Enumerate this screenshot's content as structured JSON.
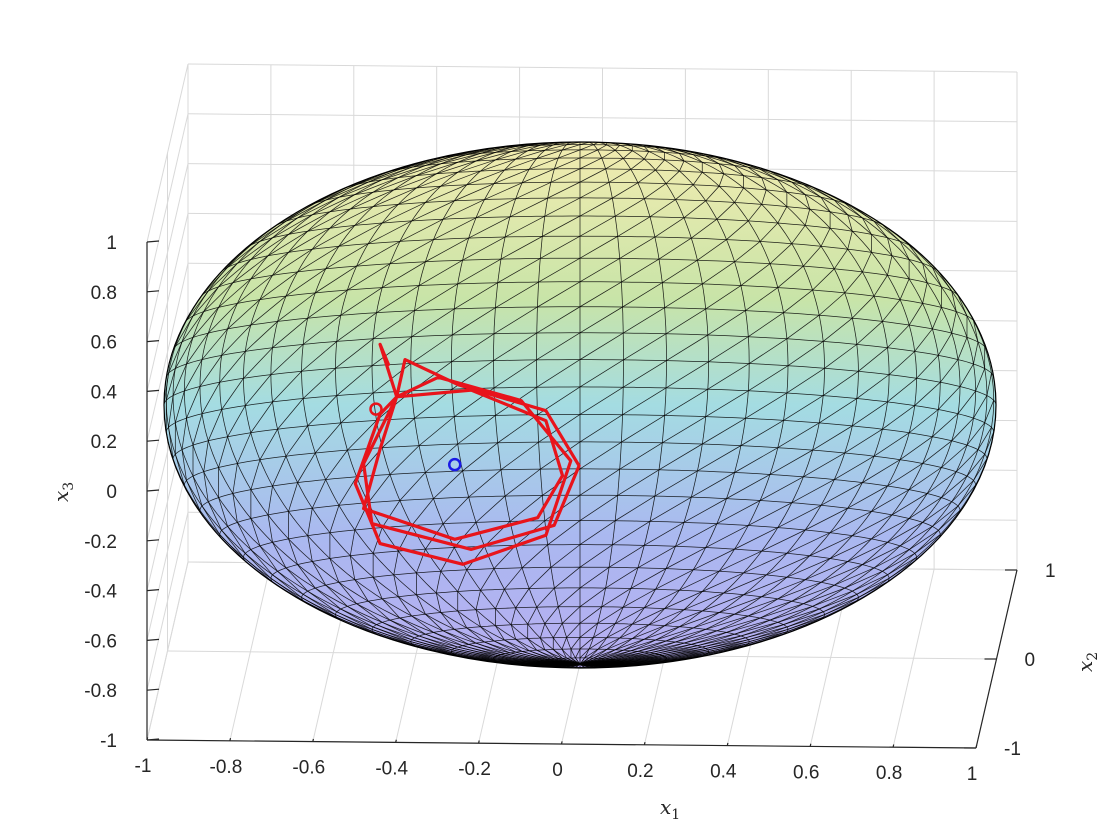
{
  "chart_data": {
    "type": "3d-surface-with-trajectory",
    "surface": {
      "shape": "ellipsoid",
      "radii": [
        1,
        1,
        0.6
      ],
      "colormap": [
        "#2d2df5",
        "#3b8fd9",
        "#4fc2b8",
        "#a7d98e",
        "#f0e89a"
      ],
      "face_alpha": 0.3,
      "edge_color": "#000000"
    },
    "trajectory": {
      "color": "#e8141b",
      "points": [
        [
          -0.42,
          -0.95,
          0.5
        ],
        [
          -0.44,
          -0.95,
          0.58
        ],
        [
          -0.4,
          -0.95,
          0.37
        ],
        [
          -0.3,
          -0.95,
          0.45
        ],
        [
          -0.1,
          -0.95,
          0.36
        ],
        [
          0.02,
          -0.95,
          0.12
        ],
        [
          -0.04,
          -0.95,
          -0.18
        ],
        [
          -0.24,
          -0.95,
          -0.3
        ],
        [
          -0.44,
          -0.95,
          -0.22
        ],
        [
          -0.5,
          -0.95,
          0.02
        ],
        [
          -0.44,
          -0.95,
          0.3
        ],
        [
          -0.4,
          -0.95,
          0.37
        ],
        [
          -0.38,
          -0.95,
          0.52
        ],
        [
          -0.25,
          -0.95,
          0.42
        ],
        [
          -0.04,
          -0.95,
          0.32
        ],
        [
          0.04,
          -0.95,
          0.1
        ],
        [
          -0.02,
          -0.95,
          -0.14
        ],
        [
          -0.22,
          -0.95,
          -0.24
        ],
        [
          -0.46,
          -0.95,
          -0.14
        ],
        [
          -0.48,
          -0.95,
          0.1
        ],
        [
          -0.4,
          -0.95,
          0.37
        ],
        [
          -0.22,
          -0.95,
          0.4
        ],
        [
          -0.04,
          -0.95,
          0.28
        ],
        [
          0.0,
          -0.95,
          0.06
        ],
        [
          -0.06,
          -0.95,
          -0.11
        ],
        [
          -0.26,
          -0.95,
          -0.2
        ],
        [
          -0.48,
          -0.95,
          -0.08
        ],
        [
          -0.44,
          -0.95,
          0.16
        ],
        [
          -0.4,
          -0.95,
          0.37
        ]
      ],
      "start_marker": {
        "point": [
          -0.45,
          -0.95,
          0.32
        ],
        "color": "#e8141b",
        "shape": "circle"
      }
    },
    "equilibrium_marker": {
      "point": [
        -0.26,
        -0.95,
        0.1
      ],
      "color": "#1a1ae6",
      "shape": "circle"
    },
    "x1": {
      "label": "x",
      "subscript": "1",
      "lim": [
        -1,
        1
      ],
      "ticks": [
        "-1",
        "-0.8",
        "-0.6",
        "-0.4",
        "-0.2",
        "0",
        "0.2",
        "0.4",
        "0.6",
        "0.8",
        "1"
      ]
    },
    "x2": {
      "label": "x",
      "subscript": "2",
      "lim": [
        -1,
        1
      ],
      "ticks": [
        "-1",
        "0",
        "1"
      ]
    },
    "x3": {
      "label": "x",
      "subscript": "3",
      "lim": [
        -1,
        1
      ],
      "ticks": [
        "-1",
        "-0.8",
        "-0.6",
        "-0.4",
        "-0.2",
        "0",
        "0.2",
        "0.4",
        "0.6",
        "0.8",
        "1"
      ]
    },
    "grid": true,
    "view": "oblique, slightly above, looking along +x2"
  }
}
